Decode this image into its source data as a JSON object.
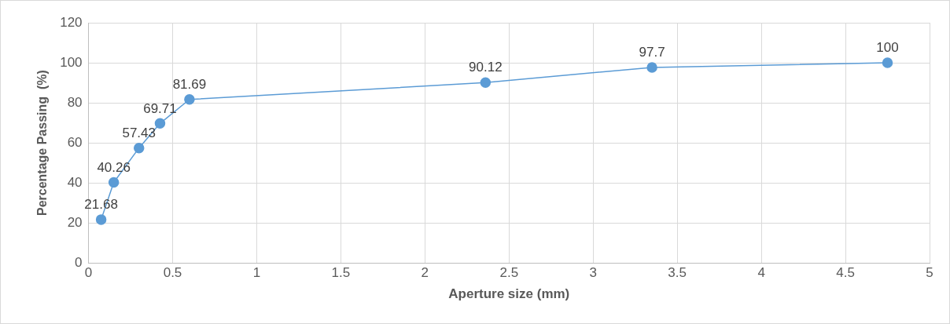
{
  "chart_data": {
    "type": "line",
    "xlabel": "Aperture size (mm)",
    "ylabel": "Percentage Passing  (%)",
    "x": [
      0.075,
      0.15,
      0.3,
      0.425,
      0.6,
      2.36,
      3.35,
      4.75
    ],
    "values": [
      21.68,
      40.26,
      57.43,
      69.71,
      81.69,
      90.12,
      97.7,
      100
    ],
    "color": "#5b9bd5",
    "xlim": [
      0,
      5
    ],
    "xticks": [
      0,
      0.5,
      1,
      1.5,
      2,
      2.5,
      3,
      3.5,
      4,
      4.5,
      5
    ],
    "ylim": [
      0,
      120
    ],
    "yticks": [
      0,
      20,
      40,
      60,
      80,
      100,
      120
    ],
    "grid": true,
    "marker": "circle",
    "line_style": "solid",
    "data_labels": true
  }
}
